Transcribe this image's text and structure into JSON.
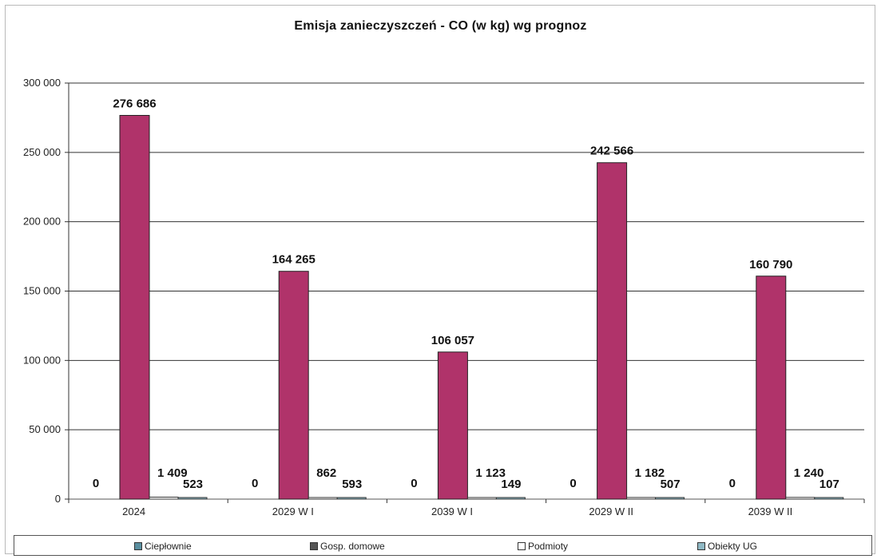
{
  "chart_data": {
    "type": "bar",
    "title": "Emisja zanieczyszczeń - CO  (w kg) wg prognoz",
    "categories": [
      "2024",
      "2029 W I",
      "2039 W I",
      "2029 W II",
      "2039 W II"
    ],
    "series": [
      {
        "name": "Ciepłownie",
        "values": [
          0,
          0,
          0,
          0,
          0
        ],
        "labels": [
          "0",
          "0",
          "0",
          "0",
          "0"
        ],
        "color": "#5a8fa0"
      },
      {
        "name": "Gosp. domowe",
        "values": [
          276686,
          164265,
          106057,
          242566,
          160790
        ],
        "labels": [
          "276 686",
          "164 265",
          "106 057",
          "242 566",
          "160 790"
        ],
        "color": "#b0336a"
      },
      {
        "name": "Podmioty",
        "values": [
          1409,
          862,
          1123,
          1182,
          1240
        ],
        "labels": [
          "1 409",
          "862",
          "1 123",
          "1 182",
          "1 240"
        ],
        "color": "#ffffff"
      },
      {
        "name": "Obiekty UG",
        "values": [
          523,
          593,
          149,
          507,
          107
        ],
        "labels": [
          "523",
          "593",
          "149",
          "507",
          "107"
        ],
        "color": "#8fb8c4"
      }
    ],
    "ylim": [
      0,
      300000
    ],
    "yticks": [
      0,
      50000,
      100000,
      150000,
      200000,
      250000,
      300000
    ],
    "ytick_labels": [
      "0",
      "50 000",
      "100 000",
      "150 000",
      "200 000",
      "250 000",
      "300 000"
    ],
    "grid": true,
    "legend_position": "bottom"
  }
}
